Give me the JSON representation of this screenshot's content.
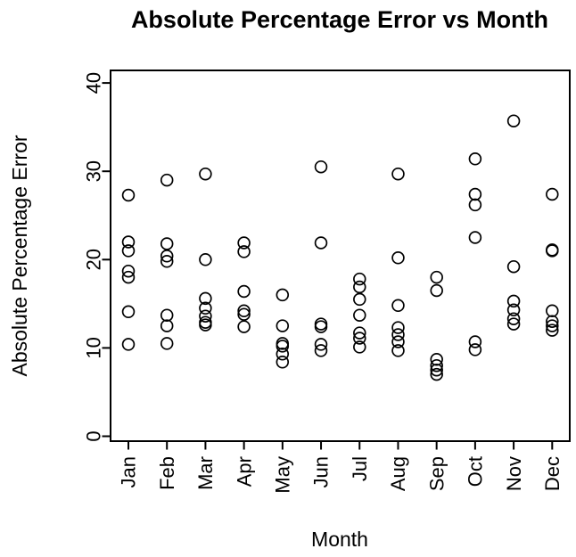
{
  "title": "Absolute Percentage Error vs Month",
  "chart_data": {
    "type": "scatter",
    "title": "Absolute Percentage Error vs Month",
    "xlabel": "Month",
    "ylabel": "Absolute Percentage Error",
    "categories": [
      "Jan",
      "Feb",
      "Mar",
      "Apr",
      "May",
      "Jun",
      "Jul",
      "Aug",
      "Sep",
      "Oct",
      "Nov",
      "Dec"
    ],
    "yticks": [
      0,
      10,
      20,
      30,
      40
    ],
    "ylim": [
      0,
      40
    ],
    "grid": false,
    "legend": "none",
    "marker": "open-circle",
    "marker_color": "#000000",
    "series": [
      {
        "name": "absolute-percentage-error",
        "values_by_month": [
          [
            27.3,
            22.0,
            21.0,
            18.7,
            18.0,
            14.1,
            10.4
          ],
          [
            29.0,
            21.8,
            20.4,
            19.8,
            13.7,
            12.5,
            10.5
          ],
          [
            29.7,
            20.0,
            15.6,
            14.5,
            13.6,
            12.9,
            12.6
          ],
          [
            21.9,
            20.9,
            16.4,
            14.2,
            13.8,
            12.4
          ],
          [
            16.0,
            12.5,
            10.5,
            10.2,
            9.3,
            8.4
          ],
          [
            30.5,
            21.9,
            12.7,
            12.4,
            10.4,
            9.7
          ],
          [
            17.8,
            16.9,
            15.5,
            13.7,
            11.7,
            11.1,
            10.1
          ],
          [
            29.7,
            20.2,
            14.8,
            12.3,
            11.5,
            10.7,
            9.7
          ],
          [
            18.0,
            16.5,
            8.7,
            8.0,
            7.5,
            7.0
          ],
          [
            31.4,
            27.4,
            26.2,
            22.5,
            10.7,
            9.8
          ],
          [
            35.7,
            19.2,
            15.3,
            14.3,
            13.3,
            12.7
          ],
          [
            27.4,
            21.1,
            21.0,
            14.2,
            13.0,
            12.5,
            12.0
          ]
        ]
      }
    ]
  }
}
